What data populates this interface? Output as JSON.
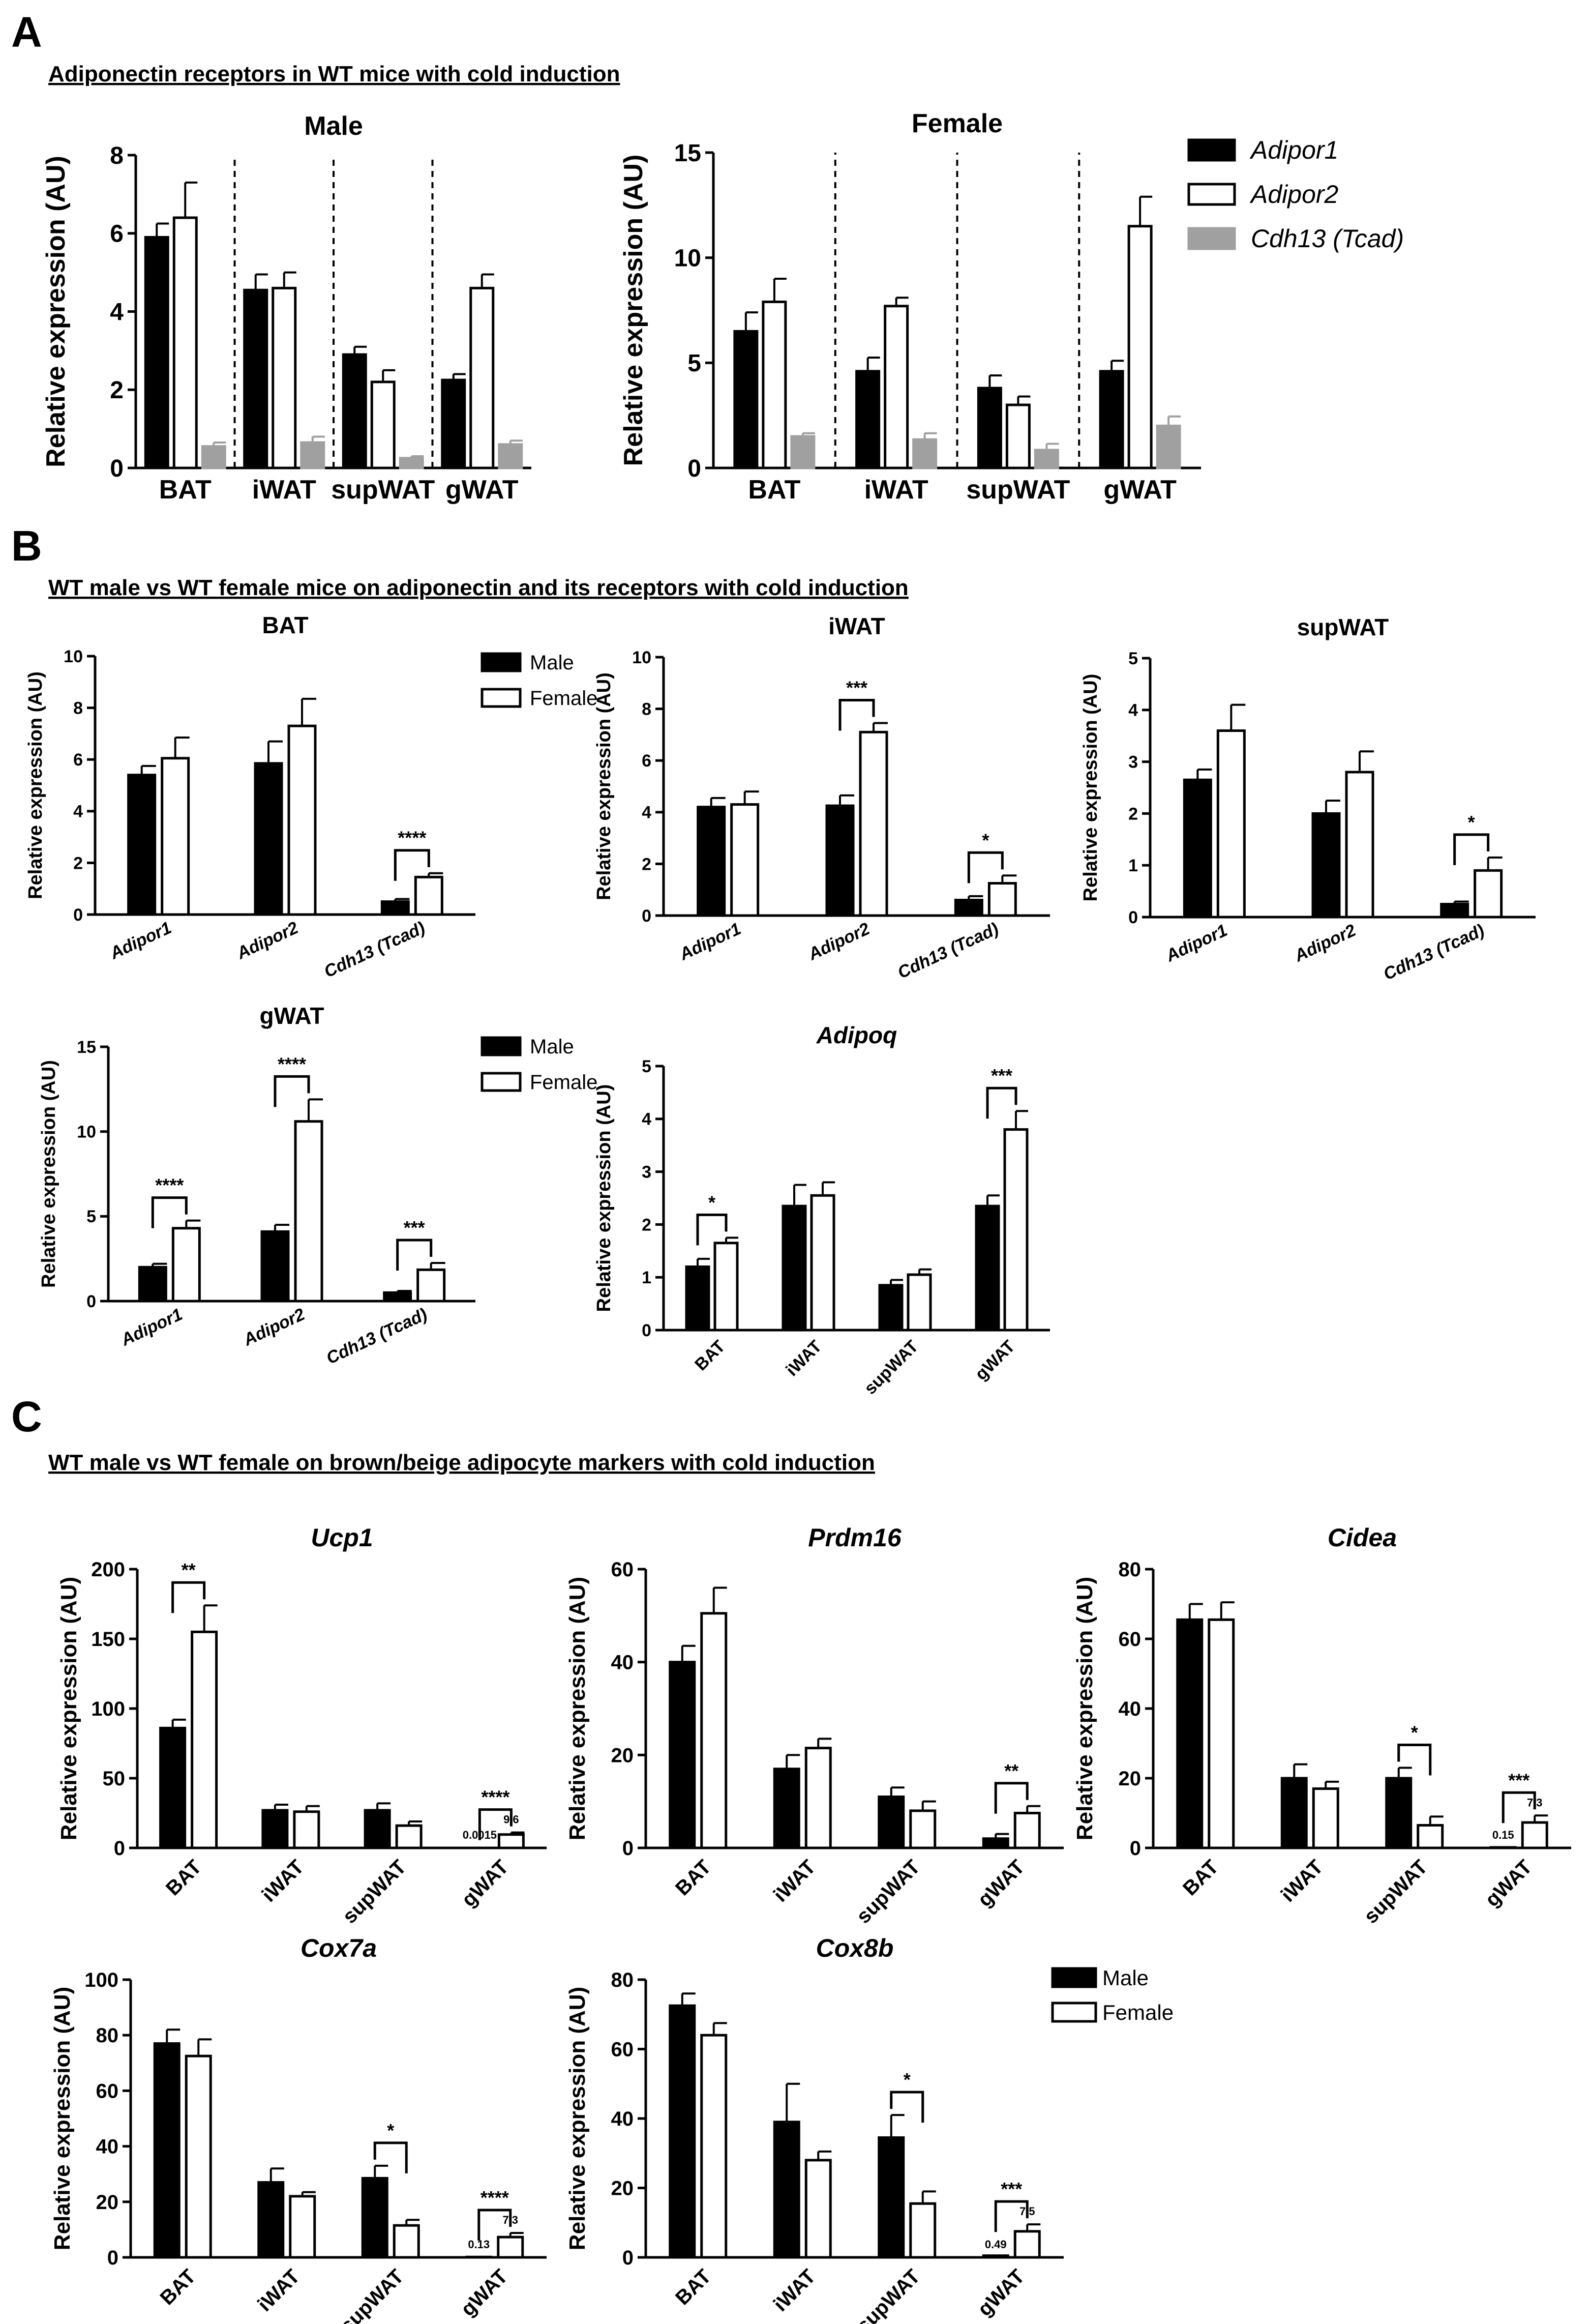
{
  "figure": {
    "panel_letters": [
      "A",
      "B",
      "C"
    ],
    "section_titles": [
      "Adiponectin receptors in WT mice with cold induction",
      "WT male vs WT female mice on adiponectin and its receptors with cold induction",
      "WT male vs WT female on brown/beige adipocyte markers with cold induction"
    ]
  },
  "colors": {
    "male": "#000000",
    "female": "#ffffff",
    "cdh13": "#a0a0a0",
    "axis": "#000000"
  },
  "legends": {
    "A": [
      "Adipor1",
      "Adipor2",
      "Cdh13 (Tcad)"
    ],
    "B": [
      "Male",
      "Female"
    ],
    "B2": [
      "Male",
      "Female"
    ],
    "C": [
      "Male",
      "Female"
    ]
  },
  "chart_data": [
    {
      "id": "A-male",
      "type": "bar",
      "title": "Male",
      "ylabel": "Relative expression (AU)",
      "categories": [
        "BAT",
        "iWAT",
        "supWAT",
        "gWAT"
      ],
      "ylim": [
        0,
        8
      ],
      "yticks": [
        0,
        2,
        4,
        6,
        8
      ],
      "series": [
        {
          "name": "Adipor1",
          "values": [
            5.9,
            4.55,
            2.9,
            2.25
          ],
          "errors": [
            0.35,
            0.4,
            0.2,
            0.15
          ]
        },
        {
          "name": "Adipor2",
          "values": [
            6.4,
            4.6,
            2.2,
            4.6
          ],
          "errors": [
            0.9,
            0.4,
            0.3,
            0.35
          ]
        },
        {
          "name": "Cdh13 (Tcad)",
          "values": [
            0.55,
            0.65,
            0.25,
            0.6
          ],
          "errors": [
            0.1,
            0.15,
            0.05,
            0.1
          ]
        }
      ],
      "significance": []
    },
    {
      "id": "A-female",
      "type": "bar",
      "title": "Female",
      "ylabel": "Relative expression (AU)",
      "categories": [
        "BAT",
        "iWAT",
        "supWAT",
        "gWAT"
      ],
      "ylim": [
        0,
        15
      ],
      "yticks": [
        0,
        5,
        10,
        15
      ],
      "series": [
        {
          "name": "Adipor1",
          "values": [
            6.5,
            4.6,
            3.8,
            4.6
          ],
          "errors": [
            0.9,
            0.65,
            0.6,
            0.5
          ]
        },
        {
          "name": "Adipor2",
          "values": [
            7.9,
            7.7,
            3.0,
            11.5
          ],
          "errors": [
            1.1,
            0.4,
            0.4,
            1.4
          ]
        },
        {
          "name": "Cdh13 (Tcad)",
          "values": [
            1.5,
            1.35,
            0.85,
            2.0
          ],
          "errors": [
            0.15,
            0.3,
            0.3,
            0.45
          ]
        }
      ],
      "significance": []
    },
    {
      "id": "B-BAT",
      "type": "bar",
      "title": "BAT",
      "ylabel": "Relative expression (AU)",
      "categories": [
        "Adipor1",
        "Adipor2",
        "Cdh13 (Tcad)"
      ],
      "ylim": [
        0,
        10
      ],
      "yticks": [
        0,
        2,
        4,
        6,
        8,
        10
      ],
      "series": [
        {
          "name": "Male",
          "values": [
            5.4,
            5.85,
            0.5
          ],
          "errors": [
            0.35,
            0.85,
            0.1
          ]
        },
        {
          "name": "Female",
          "values": [
            6.05,
            7.3,
            1.45
          ],
          "errors": [
            0.8,
            1.05,
            0.15
          ]
        }
      ],
      "significance": [
        {
          "category": 2,
          "label": "****"
        }
      ]
    },
    {
      "id": "B-iWAT",
      "type": "bar",
      "title": "iWAT",
      "ylabel": "Relative expression (AU)",
      "categories": [
        "Adipor1",
        "Adipor2",
        "Cdh13 (Tcad)"
      ],
      "ylim": [
        0,
        10
      ],
      "yticks": [
        0,
        2,
        4,
        6,
        8,
        10
      ],
      "series": [
        {
          "name": "Male",
          "values": [
            4.2,
            4.25,
            0.6
          ],
          "errors": [
            0.35,
            0.4,
            0.15
          ]
        },
        {
          "name": "Female",
          "values": [
            4.3,
            7.1,
            1.25
          ],
          "errors": [
            0.5,
            0.35,
            0.3
          ]
        }
      ],
      "significance": [
        {
          "category": 1,
          "label": "***"
        },
        {
          "category": 2,
          "label": "*"
        }
      ]
    },
    {
      "id": "B-supWAT",
      "type": "bar",
      "title": "supWAT",
      "ylabel": "Relative expression (AU)",
      "categories": [
        "Adipor1",
        "Adipor2",
        "Cdh13 (Tcad)"
      ],
      "ylim": [
        0,
        5
      ],
      "yticks": [
        0,
        1,
        2,
        3,
        4,
        5
      ],
      "series": [
        {
          "name": "Male",
          "values": [
            2.65,
            2.0,
            0.25
          ],
          "errors": [
            0.2,
            0.25,
            0.05
          ]
        },
        {
          "name": "Female",
          "values": [
            3.6,
            2.8,
            0.9
          ],
          "errors": [
            0.5,
            0.4,
            0.25
          ]
        }
      ],
      "significance": [
        {
          "category": 2,
          "label": "*"
        }
      ]
    },
    {
      "id": "B-gWAT",
      "type": "bar",
      "title": "gWAT",
      "ylabel": "Relative expression (AU)",
      "categories": [
        "Adipor1",
        "Adipor2",
        "Cdh13 (Tcad)"
      ],
      "ylim": [
        0,
        15
      ],
      "yticks": [
        0,
        5,
        10,
        15
      ],
      "series": [
        {
          "name": "Male",
          "values": [
            2.0,
            4.1,
            0.5
          ],
          "errors": [
            0.2,
            0.4,
            0.1
          ]
        },
        {
          "name": "Female",
          "values": [
            4.3,
            10.6,
            1.85
          ],
          "errors": [
            0.45,
            1.3,
            0.4
          ]
        }
      ],
      "significance": [
        {
          "category": 0,
          "label": "****"
        },
        {
          "category": 1,
          "label": "****"
        },
        {
          "category": 2,
          "label": "***"
        }
      ]
    },
    {
      "id": "B-Adipoq",
      "type": "bar",
      "title": "Adipoq",
      "ylabel": "Relative expression (AU)",
      "categories": [
        "BAT",
        "iWAT",
        "supWAT",
        "gWAT"
      ],
      "ylim": [
        0,
        5
      ],
      "yticks": [
        0,
        1,
        2,
        3,
        4,
        5
      ],
      "series": [
        {
          "name": "Male",
          "values": [
            1.2,
            2.35,
            0.85,
            2.35
          ],
          "errors": [
            0.15,
            0.4,
            0.1,
            0.2
          ]
        },
        {
          "name": "Female",
          "values": [
            1.65,
            2.55,
            1.05,
            3.8
          ],
          "errors": [
            0.1,
            0.25,
            0.1,
            0.35
          ]
        }
      ],
      "significance": [
        {
          "category": 0,
          "label": "*"
        },
        {
          "category": 3,
          "label": "***"
        }
      ]
    },
    {
      "id": "C-Ucp1",
      "type": "bar",
      "title": "Ucp1",
      "ylabel": "Relative expression (AU)",
      "categories": [
        "BAT",
        "iWAT",
        "supWAT",
        "gWAT"
      ],
      "ylim": [
        0,
        200
      ],
      "yticks": [
        0,
        50,
        100,
        150,
        200
      ],
      "series": [
        {
          "name": "Male",
          "values": [
            86,
            27,
            27,
            0.0015
          ],
          "errors": [
            6,
            4,
            5,
            0
          ]
        },
        {
          "name": "Female",
          "values": [
            155,
            26,
            16,
            9.6
          ],
          "errors": [
            19,
            4,
            3,
            1.5
          ]
        }
      ],
      "value_labels": [
        {
          "category": 3,
          "male": "0.0015",
          "female": "9.6"
        }
      ],
      "significance": [
        {
          "category": 0,
          "label": "**"
        },
        {
          "category": 3,
          "label": "****"
        }
      ]
    },
    {
      "id": "C-Prdm16",
      "type": "bar",
      "title": "Prdm16",
      "ylabel": "Relative expression (AU)",
      "categories": [
        "BAT",
        "iWAT",
        "supWAT",
        "gWAT"
      ],
      "ylim": [
        0,
        60
      ],
      "yticks": [
        0,
        20,
        40,
        60
      ],
      "series": [
        {
          "name": "Male",
          "values": [
            40,
            17,
            11,
            2
          ],
          "errors": [
            3.5,
            3,
            2,
            1
          ]
        },
        {
          "name": "Female",
          "values": [
            50.5,
            21.5,
            8,
            7.5
          ],
          "errors": [
            5.5,
            2,
            2,
            1.5
          ]
        }
      ],
      "significance": [
        {
          "category": 3,
          "label": "**"
        }
      ]
    },
    {
      "id": "C-Cidea",
      "type": "bar",
      "title": "Cidea",
      "ylabel": "Relative expression (AU)",
      "categories": [
        "BAT",
        "iWAT",
        "supWAT",
        "gWAT"
      ],
      "ylim": [
        0,
        80
      ],
      "yticks": [
        0,
        20,
        40,
        60,
        80
      ],
      "series": [
        {
          "name": "Male",
          "values": [
            65.5,
            20,
            20,
            0.15
          ],
          "errors": [
            4.5,
            4,
            3,
            0
          ]
        },
        {
          "name": "Female",
          "values": [
            65.5,
            17,
            6.5,
            7.3
          ],
          "errors": [
            5,
            2,
            2.5,
            2
          ]
        }
      ],
      "value_labels": [
        {
          "category": 3,
          "male": "0.15",
          "female": "7.3"
        }
      ],
      "significance": [
        {
          "category": 2,
          "label": "*"
        },
        {
          "category": 3,
          "label": "***"
        }
      ]
    },
    {
      "id": "C-Cox7a",
      "type": "bar",
      "title": "Cox7a",
      "ylabel": "Relative expression (AU)",
      "categories": [
        "BAT",
        "iWAT",
        "supWAT",
        "gWAT"
      ],
      "ylim": [
        0,
        100
      ],
      "yticks": [
        0,
        20,
        40,
        60,
        80,
        100
      ],
      "series": [
        {
          "name": "Male",
          "values": [
            77,
            27,
            28.5,
            0.13
          ],
          "errors": [
            5,
            5,
            4.5,
            0
          ]
        },
        {
          "name": "Female",
          "values": [
            72.5,
            22,
            11.5,
            7.3
          ],
          "errors": [
            6,
            1.5,
            2,
            1.5
          ]
        }
      ],
      "value_labels": [
        {
          "category": 3,
          "male": "0.13",
          "female": "7.3"
        }
      ],
      "significance": [
        {
          "category": 2,
          "label": "*"
        },
        {
          "category": 3,
          "label": "****"
        }
      ]
    },
    {
      "id": "C-Cox8b",
      "type": "bar",
      "title": "Cox8b",
      "ylabel": "Relative expression (AU)",
      "categories": [
        "BAT",
        "iWAT",
        "supWAT",
        "gWAT"
      ],
      "ylim": [
        0,
        80
      ],
      "yticks": [
        0,
        20,
        40,
        60,
        80
      ],
      "series": [
        {
          "name": "Male",
          "values": [
            72.5,
            39,
            34.5,
            0.49
          ],
          "errors": [
            3.5,
            11,
            6.5,
            0
          ]
        },
        {
          "name": "Female",
          "values": [
            64,
            28,
            15.5,
            7.5
          ],
          "errors": [
            3.5,
            2.5,
            3.5,
            2
          ]
        }
      ],
      "value_labels": [
        {
          "category": 3,
          "male": "0.49",
          "female": "7.5"
        }
      ],
      "significance": [
        {
          "category": 2,
          "label": "*"
        },
        {
          "category": 3,
          "label": "***"
        }
      ]
    }
  ]
}
